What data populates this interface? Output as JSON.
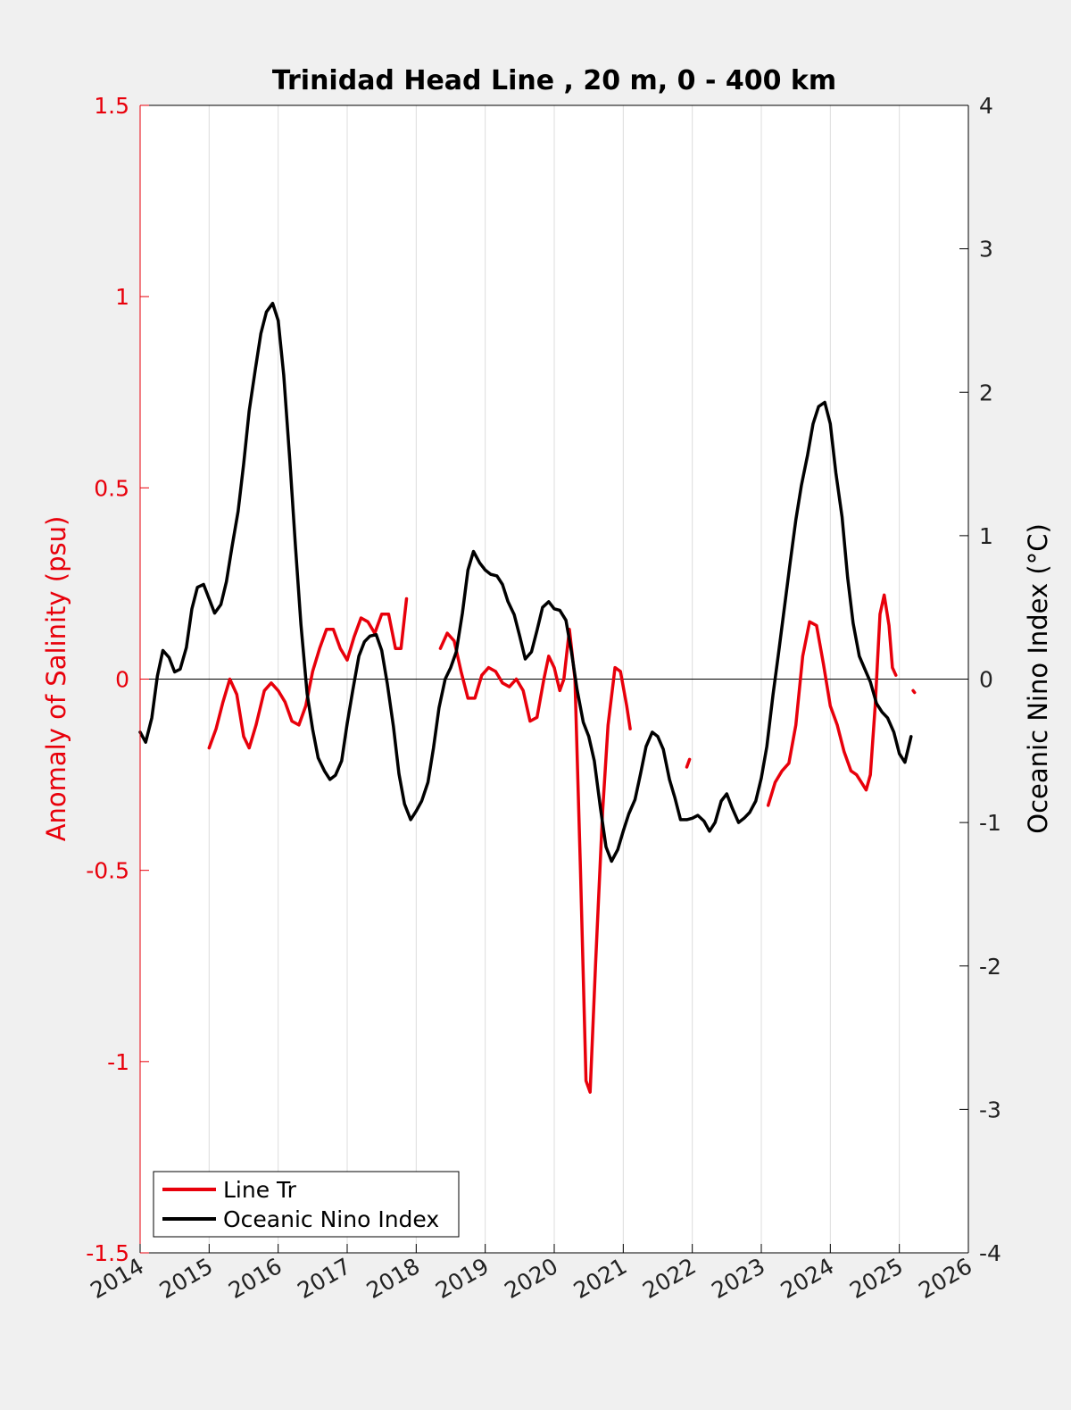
{
  "chart_data": {
    "type": "line",
    "title": "Trinidad Head Line , 20 m, 0 - 400 km",
    "xlabel": "",
    "ylabel_left": "Anomaly of Salinity (psu)",
    "ylabel_right": "Oceanic Nino Index (°C)",
    "xlim": [
      2014,
      2026
    ],
    "ylim_left": [
      -1.5,
      1.5
    ],
    "ylim_right": [
      -4,
      4
    ],
    "x_ticks": [
      "2014",
      "2015",
      "2016",
      "2017",
      "2018",
      "2019",
      "2020",
      "2021",
      "2022",
      "2023",
      "2024",
      "2025",
      "2026"
    ],
    "y_ticks_left": [
      "1.5",
      "1",
      "0.5",
      "0",
      "-0.5",
      "-1",
      "-1.5"
    ],
    "y_ticks_right": [
      "4",
      "3",
      "2",
      "1",
      "0",
      "-1",
      "-2",
      "-3",
      "-4"
    ],
    "grid": "vertical",
    "zero_line": true,
    "legend_position": "bottom-left",
    "colors": {
      "salinity": "#e8000b",
      "oni": "#000000",
      "left_axis": "#e8000b",
      "right_axis": "#000000"
    },
    "series": [
      {
        "name": "Line Tr",
        "axis": "left",
        "segments": [
          [
            [
              2015.0,
              -0.18
            ],
            [
              2015.1,
              -0.13
            ],
            [
              2015.2,
              -0.06
            ],
            [
              2015.3,
              0.0
            ],
            [
              2015.4,
              -0.04
            ],
            [
              2015.5,
              -0.15
            ],
            [
              2015.58,
              -0.18
            ],
            [
              2015.68,
              -0.12
            ],
            [
              2015.8,
              -0.03
            ],
            [
              2015.9,
              -0.01
            ],
            [
              2016.0,
              -0.03
            ],
            [
              2016.1,
              -0.06
            ],
            [
              2016.2,
              -0.11
            ],
            [
              2016.3,
              -0.12
            ],
            [
              2016.4,
              -0.07
            ],
            [
              2016.5,
              0.02
            ],
            [
              2016.6,
              0.08
            ],
            [
              2016.7,
              0.13
            ],
            [
              2016.8,
              0.13
            ],
            [
              2016.9,
              0.08
            ],
            [
              2017.0,
              0.05
            ],
            [
              2017.1,
              0.11
            ],
            [
              2017.2,
              0.16
            ],
            [
              2017.3,
              0.15
            ],
            [
              2017.4,
              0.12
            ],
            [
              2017.5,
              0.17
            ],
            [
              2017.6,
              0.17
            ],
            [
              2017.7,
              0.08
            ],
            [
              2017.78,
              0.08
            ],
            [
              2017.86,
              0.21
            ]
          ],
          [
            [
              2018.35,
              0.08
            ],
            [
              2018.45,
              0.12
            ],
            [
              2018.55,
              0.1
            ],
            [
              2018.65,
              0.02
            ],
            [
              2018.75,
              -0.05
            ],
            [
              2018.85,
              -0.05
            ],
            [
              2018.95,
              0.01
            ],
            [
              2019.05,
              0.03
            ],
            [
              2019.15,
              0.02
            ],
            [
              2019.25,
              -0.01
            ],
            [
              2019.35,
              -0.02
            ],
            [
              2019.45,
              0.0
            ],
            [
              2019.55,
              -0.03
            ],
            [
              2019.65,
              -0.11
            ],
            [
              2019.75,
              -0.1
            ],
            [
              2019.85,
              0.0
            ],
            [
              2019.92,
              0.06
            ],
            [
              2020.0,
              0.03
            ],
            [
              2020.08,
              -0.03
            ],
            [
              2020.14,
              0.0
            ],
            [
              2020.22,
              0.13
            ],
            [
              2020.3,
              0.0
            ],
            [
              2020.38,
              -0.5
            ],
            [
              2020.46,
              -1.05
            ],
            [
              2020.52,
              -1.08
            ],
            [
              2020.6,
              -0.74
            ],
            [
              2020.7,
              -0.35
            ],
            [
              2020.78,
              -0.12
            ],
            [
              2020.88,
              0.03
            ],
            [
              2020.96,
              0.02
            ],
            [
              2021.05,
              -0.07
            ],
            [
              2021.1,
              -0.13
            ]
          ],
          [
            [
              2021.92,
              -0.23
            ],
            [
              2021.96,
              -0.21
            ]
          ],
          [
            [
              2023.1,
              -0.33
            ],
            [
              2023.2,
              -0.27
            ],
            [
              2023.3,
              -0.24
            ],
            [
              2023.4,
              -0.22
            ],
            [
              2023.5,
              -0.12
            ],
            [
              2023.6,
              0.06
            ],
            [
              2023.7,
              0.15
            ],
            [
              2023.8,
              0.14
            ],
            [
              2023.9,
              0.04
            ],
            [
              2024.0,
              -0.07
            ],
            [
              2024.1,
              -0.12
            ],
            [
              2024.2,
              -0.19
            ],
            [
              2024.3,
              -0.24
            ],
            [
              2024.38,
              -0.25
            ],
            [
              2024.45,
              -0.27
            ],
            [
              2024.52,
              -0.29
            ],
            [
              2024.58,
              -0.25
            ],
            [
              2024.65,
              -0.07
            ],
            [
              2024.72,
              0.17
            ],
            [
              2024.78,
              0.22
            ],
            [
              2024.85,
              0.14
            ],
            [
              2024.9,
              0.03
            ],
            [
              2024.95,
              0.01
            ]
          ],
          [
            [
              2025.2,
              -0.03
            ],
            [
              2025.22,
              -0.035
            ]
          ]
        ]
      },
      {
        "name": "Oceanic Nino Index",
        "axis": "right",
        "segments": [
          [
            [
              2014.0,
              -0.37
            ],
            [
              2014.08,
              -0.44
            ],
            [
              2014.17,
              -0.27
            ],
            [
              2014.25,
              0.02
            ],
            [
              2014.33,
              0.2
            ],
            [
              2014.42,
              0.15
            ],
            [
              2014.5,
              0.05
            ],
            [
              2014.58,
              0.07
            ],
            [
              2014.67,
              0.22
            ],
            [
              2014.75,
              0.49
            ],
            [
              2014.83,
              0.64
            ],
            [
              2014.92,
              0.66
            ],
            [
              2015.0,
              0.56
            ],
            [
              2015.08,
              0.46
            ],
            [
              2015.17,
              0.52
            ],
            [
              2015.25,
              0.68
            ],
            [
              2015.33,
              0.92
            ],
            [
              2015.42,
              1.17
            ],
            [
              2015.5,
              1.5
            ],
            [
              2015.58,
              1.87
            ],
            [
              2015.67,
              2.16
            ],
            [
              2015.75,
              2.41
            ],
            [
              2015.83,
              2.56
            ],
            [
              2015.92,
              2.62
            ],
            [
              2016.0,
              2.5
            ],
            [
              2016.08,
              2.12
            ],
            [
              2016.17,
              1.52
            ],
            [
              2016.25,
              0.93
            ],
            [
              2016.33,
              0.38
            ],
            [
              2016.42,
              -0.1
            ],
            [
              2016.5,
              -0.35
            ],
            [
              2016.58,
              -0.55
            ],
            [
              2016.67,
              -0.64
            ],
            [
              2016.75,
              -0.7
            ],
            [
              2016.83,
              -0.67
            ],
            [
              2016.92,
              -0.57
            ],
            [
              2017.0,
              -0.31
            ],
            [
              2017.08,
              -0.08
            ],
            [
              2017.17,
              0.16
            ],
            [
              2017.25,
              0.26
            ],
            [
              2017.33,
              0.3
            ],
            [
              2017.42,
              0.31
            ],
            [
              2017.5,
              0.2
            ],
            [
              2017.58,
              -0.03
            ],
            [
              2017.67,
              -0.33
            ],
            [
              2017.75,
              -0.66
            ],
            [
              2017.83,
              -0.87
            ],
            [
              2017.92,
              -0.98
            ],
            [
              2018.0,
              -0.92
            ],
            [
              2018.08,
              -0.85
            ],
            [
              2018.17,
              -0.72
            ],
            [
              2018.25,
              -0.48
            ],
            [
              2018.33,
              -0.2
            ],
            [
              2018.42,
              0.0
            ],
            [
              2018.5,
              0.08
            ],
            [
              2018.58,
              0.19
            ],
            [
              2018.67,
              0.46
            ],
            [
              2018.75,
              0.76
            ],
            [
              2018.83,
              0.89
            ],
            [
              2018.92,
              0.81
            ],
            [
              2019.0,
              0.76
            ],
            [
              2019.08,
              0.73
            ],
            [
              2019.17,
              0.72
            ],
            [
              2019.25,
              0.66
            ],
            [
              2019.33,
              0.54
            ],
            [
              2019.42,
              0.45
            ],
            [
              2019.5,
              0.3
            ],
            [
              2019.58,
              0.14
            ],
            [
              2019.67,
              0.19
            ],
            [
              2019.75,
              0.34
            ],
            [
              2019.83,
              0.5
            ],
            [
              2019.92,
              0.54
            ],
            [
              2020.0,
              0.49
            ],
            [
              2020.08,
              0.48
            ],
            [
              2020.17,
              0.41
            ],
            [
              2020.25,
              0.19
            ],
            [
              2020.33,
              -0.07
            ],
            [
              2020.42,
              -0.3
            ],
            [
              2020.5,
              -0.4
            ],
            [
              2020.58,
              -0.57
            ],
            [
              2020.67,
              -0.9
            ],
            [
              2020.75,
              -1.17
            ],
            [
              2020.83,
              -1.27
            ],
            [
              2020.92,
              -1.19
            ],
            [
              2021.0,
              -1.06
            ],
            [
              2021.08,
              -0.94
            ],
            [
              2021.17,
              -0.84
            ],
            [
              2021.25,
              -0.66
            ],
            [
              2021.33,
              -0.47
            ],
            [
              2021.42,
              -0.37
            ],
            [
              2021.5,
              -0.4
            ],
            [
              2021.58,
              -0.49
            ],
            [
              2021.67,
              -0.7
            ],
            [
              2021.75,
              -0.83
            ],
            [
              2021.83,
              -0.98
            ],
            [
              2021.92,
              -0.98
            ],
            [
              2022.0,
              -0.97
            ],
            [
              2022.08,
              -0.95
            ],
            [
              2022.17,
              -0.99
            ],
            [
              2022.25,
              -1.06
            ],
            [
              2022.33,
              -1.0
            ],
            [
              2022.42,
              -0.85
            ],
            [
              2022.5,
              -0.8
            ],
            [
              2022.58,
              -0.9
            ],
            [
              2022.67,
              -1.0
            ],
            [
              2022.75,
              -0.97
            ],
            [
              2022.83,
              -0.93
            ],
            [
              2022.92,
              -0.85
            ],
            [
              2023.0,
              -0.69
            ],
            [
              2023.08,
              -0.47
            ],
            [
              2023.17,
              -0.11
            ],
            [
              2023.25,
              0.18
            ],
            [
              2023.33,
              0.48
            ],
            [
              2023.42,
              0.82
            ],
            [
              2023.5,
              1.11
            ],
            [
              2023.58,
              1.35
            ],
            [
              2023.67,
              1.56
            ],
            [
              2023.75,
              1.78
            ],
            [
              2023.83,
              1.9
            ],
            [
              2023.92,
              1.93
            ],
            [
              2024.0,
              1.78
            ],
            [
              2024.08,
              1.44
            ],
            [
              2024.17,
              1.13
            ],
            [
              2024.25,
              0.71
            ],
            [
              2024.33,
              0.39
            ],
            [
              2024.42,
              0.16
            ],
            [
              2024.5,
              0.07
            ],
            [
              2024.58,
              -0.02
            ],
            [
              2024.67,
              -0.17
            ],
            [
              2024.75,
              -0.23
            ],
            [
              2024.83,
              -0.27
            ],
            [
              2024.92,
              -0.37
            ],
            [
              2025.0,
              -0.52
            ],
            [
              2025.08,
              -0.58
            ],
            [
              2025.17,
              -0.4
            ]
          ]
        ]
      }
    ]
  }
}
